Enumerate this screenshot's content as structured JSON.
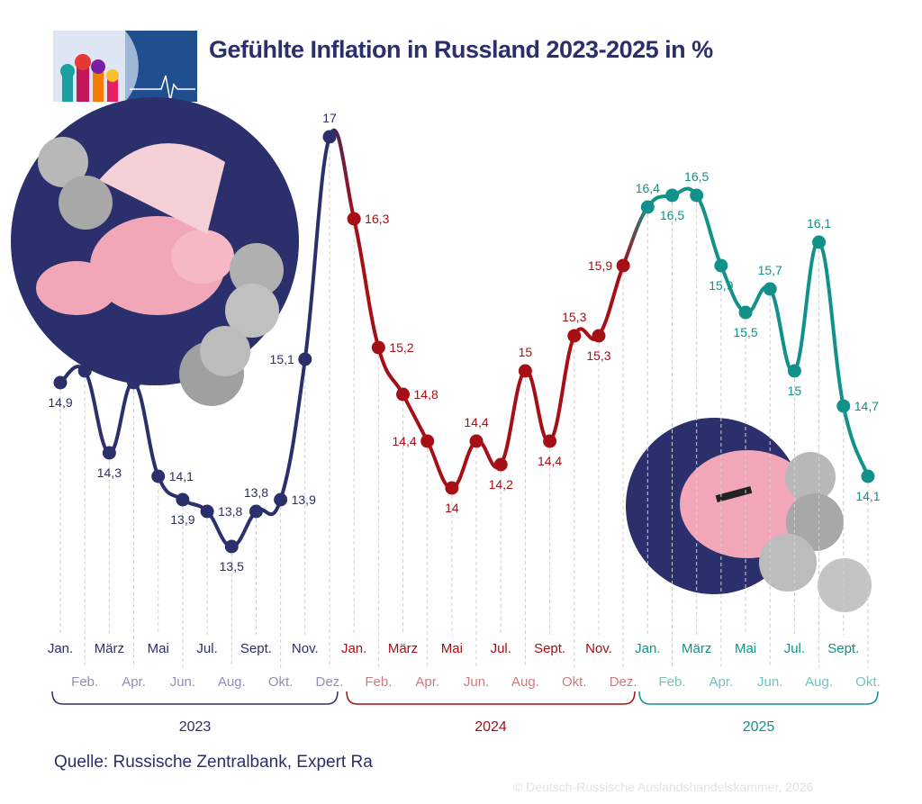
{
  "title": "Gefühlte Inflation in Russland 2023-2025 in %",
  "source": "Quelle: Russische Zentralbank, Expert Ra",
  "copyright": "© Deutsch-Russische Auslandshandelskammer, 2026",
  "colors": {
    "2023": "#2b2f6b",
    "2024": "#a50f15",
    "2025": "#12918a",
    "title": "#2b2f6b"
  },
  "chart_data": {
    "type": "line",
    "title": "Gefühlte Inflation in Russland 2023-2025 in %",
    "ylim": [
      13.5,
      17
    ],
    "grid": false,
    "series": [
      {
        "name": "2023",
        "months": [
          "Jan.",
          "Feb.",
          "März",
          "Apr.",
          "Mai",
          "Jun.",
          "Jul.",
          "Aug.",
          "Sept.",
          "Okt.",
          "Nov.",
          "Dez."
        ],
        "values": [
          14.9,
          15,
          14.3,
          14.9,
          14.1,
          13.9,
          13.8,
          13.5,
          13.8,
          13.9,
          15.1,
          17
        ]
      },
      {
        "name": "2024",
        "months": [
          "Jan.",
          "Feb.",
          "März",
          "Apr.",
          "Mai",
          "Jun.",
          "Jul.",
          "Aug.",
          "Sept.",
          "Okt.",
          "Nov.",
          "Dez."
        ],
        "values": [
          16.3,
          15.2,
          14.8,
          14.4,
          14,
          14.4,
          14.2,
          15,
          14.4,
          15.3,
          15.3,
          15.9
        ]
      },
      {
        "name": "2025",
        "months": [
          "Jan.",
          "Feb.",
          "März",
          "Apr.",
          "Mai",
          "Jun.",
          "Jul.",
          "Aug.",
          "Sept.",
          "Okt."
        ],
        "values": [
          16.4,
          16.5,
          16.5,
          15.9,
          15.5,
          15.7,
          15,
          16.1,
          14.7,
          14.1
        ]
      }
    ]
  }
}
